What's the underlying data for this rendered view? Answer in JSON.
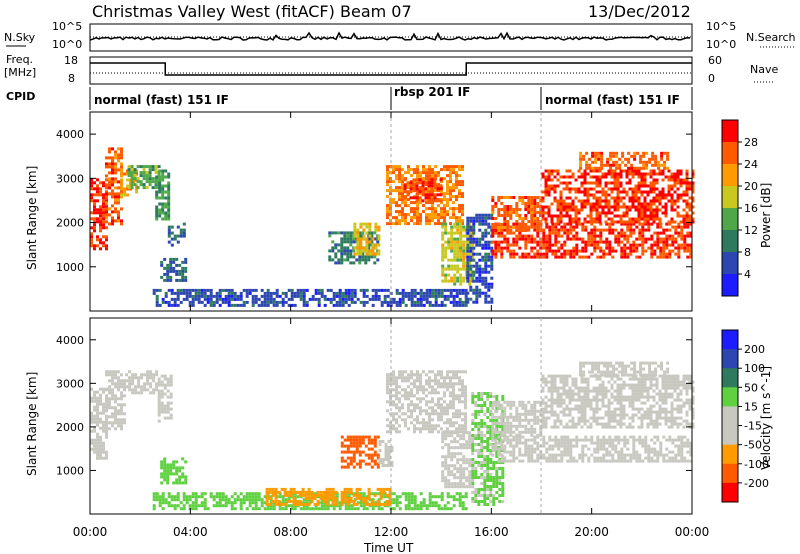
{
  "header": {
    "title": "Christmas Valley West (fitACF)",
    "beam": "Beam 07",
    "date": "13/Dec/2012"
  },
  "top_panels": {
    "nsky_label": "N.Sky",
    "nsearch_label": "N.Search",
    "nsky_ticks": [
      "10^5",
      "10^0"
    ],
    "nsearch_ticks": [
      "10^5",
      "10^0"
    ],
    "freq_label_1": "Freq.",
    "freq_label_2": "[MHz]",
    "freq_ticks": [
      "18",
      "8"
    ],
    "nave_label": "Nave",
    "nave_ticks": [
      "60",
      "0"
    ],
    "cpid_label": "CPID",
    "cpid_segments": [
      {
        "label": "normal (fast) 151 IF",
        "start_h": 0,
        "end_h": 12
      },
      {
        "label": "rbsp 201 IF",
        "start_h": 12,
        "end_h": 18
      },
      {
        "label": "normal (fast) 151 IF",
        "start_h": 18,
        "end_h": 24
      }
    ]
  },
  "chart_data": [
    {
      "type": "heatmap",
      "name": "power",
      "ylabel": "Slant Range [km]",
      "yticks": [
        "1000",
        "2000",
        "3000",
        "4000"
      ],
      "ylim": [
        0,
        4500
      ],
      "colorbar_label": "Power [dB]",
      "colorbar_ticks": [
        "4",
        "8",
        "12",
        "16",
        "20",
        "24",
        "28"
      ],
      "colorbar_colors": [
        "#1c1cff",
        "#2d47b0",
        "#2e7a5e",
        "#4ea84a",
        "#c9c81e",
        "#ff9a00",
        "#ff5a00",
        "#ff0000"
      ],
      "regions": [
        {
          "t0": 0.0,
          "t1": 0.6,
          "r0": 1400,
          "r1": 3000,
          "level": 28
        },
        {
          "t0": 0.6,
          "t1": 1.3,
          "r0": 2000,
          "r1": 3700,
          "level": 26
        },
        {
          "t0": 1.2,
          "t1": 1.8,
          "r0": 2600,
          "r1": 3200,
          "level": 22
        },
        {
          "t0": 1.5,
          "t1": 2.7,
          "r0": 2800,
          "r1": 3300,
          "level": 14
        },
        {
          "t0": 2.6,
          "t1": 3.1,
          "r0": 2100,
          "r1": 3200,
          "level": 12
        },
        {
          "t0": 2.8,
          "t1": 3.8,
          "r0": 700,
          "r1": 1200,
          "level": 8
        },
        {
          "t0": 3.1,
          "t1": 3.8,
          "r0": 1500,
          "r1": 2000,
          "level": 8
        },
        {
          "t0": 2.5,
          "t1": 15.0,
          "r0": 150,
          "r1": 500,
          "level": 6
        },
        {
          "t0": 9.5,
          "t1": 11.5,
          "r0": 1100,
          "r1": 1800,
          "level": 10
        },
        {
          "t0": 10.5,
          "t1": 11.5,
          "r0": 1300,
          "r1": 2000,
          "level": 20
        },
        {
          "t0": 11.8,
          "t1": 14.8,
          "r0": 2000,
          "r1": 3300,
          "level": 24
        },
        {
          "t0": 12.5,
          "t1": 14.0,
          "r0": 2500,
          "r1": 3000,
          "level": 28
        },
        {
          "t0": 14.0,
          "t1": 15.2,
          "r0": 600,
          "r1": 2000,
          "level": 18
        },
        {
          "t0": 15.0,
          "t1": 16.0,
          "r0": 200,
          "r1": 2200,
          "level": 6
        },
        {
          "t0": 16.0,
          "t1": 24.0,
          "r0": 1200,
          "r1": 2000,
          "level": 28
        },
        {
          "t0": 16.0,
          "t1": 18.0,
          "r0": 1800,
          "r1": 2600,
          "level": 26
        },
        {
          "t0": 18.0,
          "t1": 24.0,
          "r0": 2000,
          "r1": 3200,
          "level": 28
        },
        {
          "t0": 19.5,
          "t1": 23.0,
          "r0": 3200,
          "r1": 3600,
          "level": 26
        }
      ]
    },
    {
      "type": "heatmap",
      "name": "velocity",
      "ylabel": "Slant Range [km]",
      "yticks": [
        "1000",
        "2000",
        "3000",
        "4000"
      ],
      "ylim": [
        0,
        4500
      ],
      "colorbar_label": "Velocity [m s^-1]",
      "colorbar_ticks": [
        "200",
        "100",
        "50",
        "15",
        "-15",
        "-50",
        "-100",
        "-200"
      ],
      "colorbar_colors": [
        "#1c1cff",
        "#2d47b0",
        "#2e7a5e",
        "#5fd040",
        "#c8c8c0",
        "#c8c8c0",
        "#ff9a00",
        "#ff5a00",
        "#ff0000"
      ],
      "regions": [
        {
          "t0": 0.0,
          "t1": 0.6,
          "r0": 1300,
          "r1": 2900,
          "level": 0
        },
        {
          "t0": 0.6,
          "t1": 1.4,
          "r0": 1900,
          "r1": 3300,
          "level": 0
        },
        {
          "t0": 1.4,
          "t1": 2.7,
          "r0": 2800,
          "r1": 3300,
          "level": 0
        },
        {
          "t0": 2.7,
          "t1": 3.2,
          "r0": 2100,
          "r1": 3200,
          "level": 0
        },
        {
          "t0": 2.8,
          "t1": 3.8,
          "r0": 700,
          "r1": 1300,
          "level": 30
        },
        {
          "t0": 2.5,
          "t1": 15.0,
          "r0": 150,
          "r1": 500,
          "level": 30
        },
        {
          "t0": 7.0,
          "t1": 12.0,
          "r0": 200,
          "r1": 600,
          "level": -60
        },
        {
          "t0": 10.0,
          "t1": 11.5,
          "r0": 1100,
          "r1": 1800,
          "level": -120
        },
        {
          "t0": 11.5,
          "t1": 12.0,
          "r0": 1100,
          "r1": 1700,
          "level": 0
        },
        {
          "t0": 11.8,
          "t1": 15.0,
          "r0": 1900,
          "r1": 3300,
          "level": 0
        },
        {
          "t0": 14.0,
          "t1": 15.2,
          "r0": 600,
          "r1": 1900,
          "level": 0
        },
        {
          "t0": 15.2,
          "t1": 16.5,
          "r0": 200,
          "r1": 2800,
          "level": 20
        },
        {
          "t0": 16.0,
          "t1": 24.0,
          "r0": 1200,
          "r1": 1800,
          "level": 0
        },
        {
          "t0": 16.0,
          "t1": 18.0,
          "r0": 1800,
          "r1": 2600,
          "level": 0
        },
        {
          "t0": 18.0,
          "t1": 24.0,
          "r0": 2000,
          "r1": 3200,
          "level": 0
        },
        {
          "t0": 19.5,
          "t1": 23.0,
          "r0": 3200,
          "r1": 3500,
          "level": 0
        }
      ]
    }
  ],
  "xaxis": {
    "ticks": [
      "00:00",
      "04:00",
      "08:00",
      "12:00",
      "16:00",
      "20:00",
      "00:00"
    ],
    "label": "Time UT"
  }
}
